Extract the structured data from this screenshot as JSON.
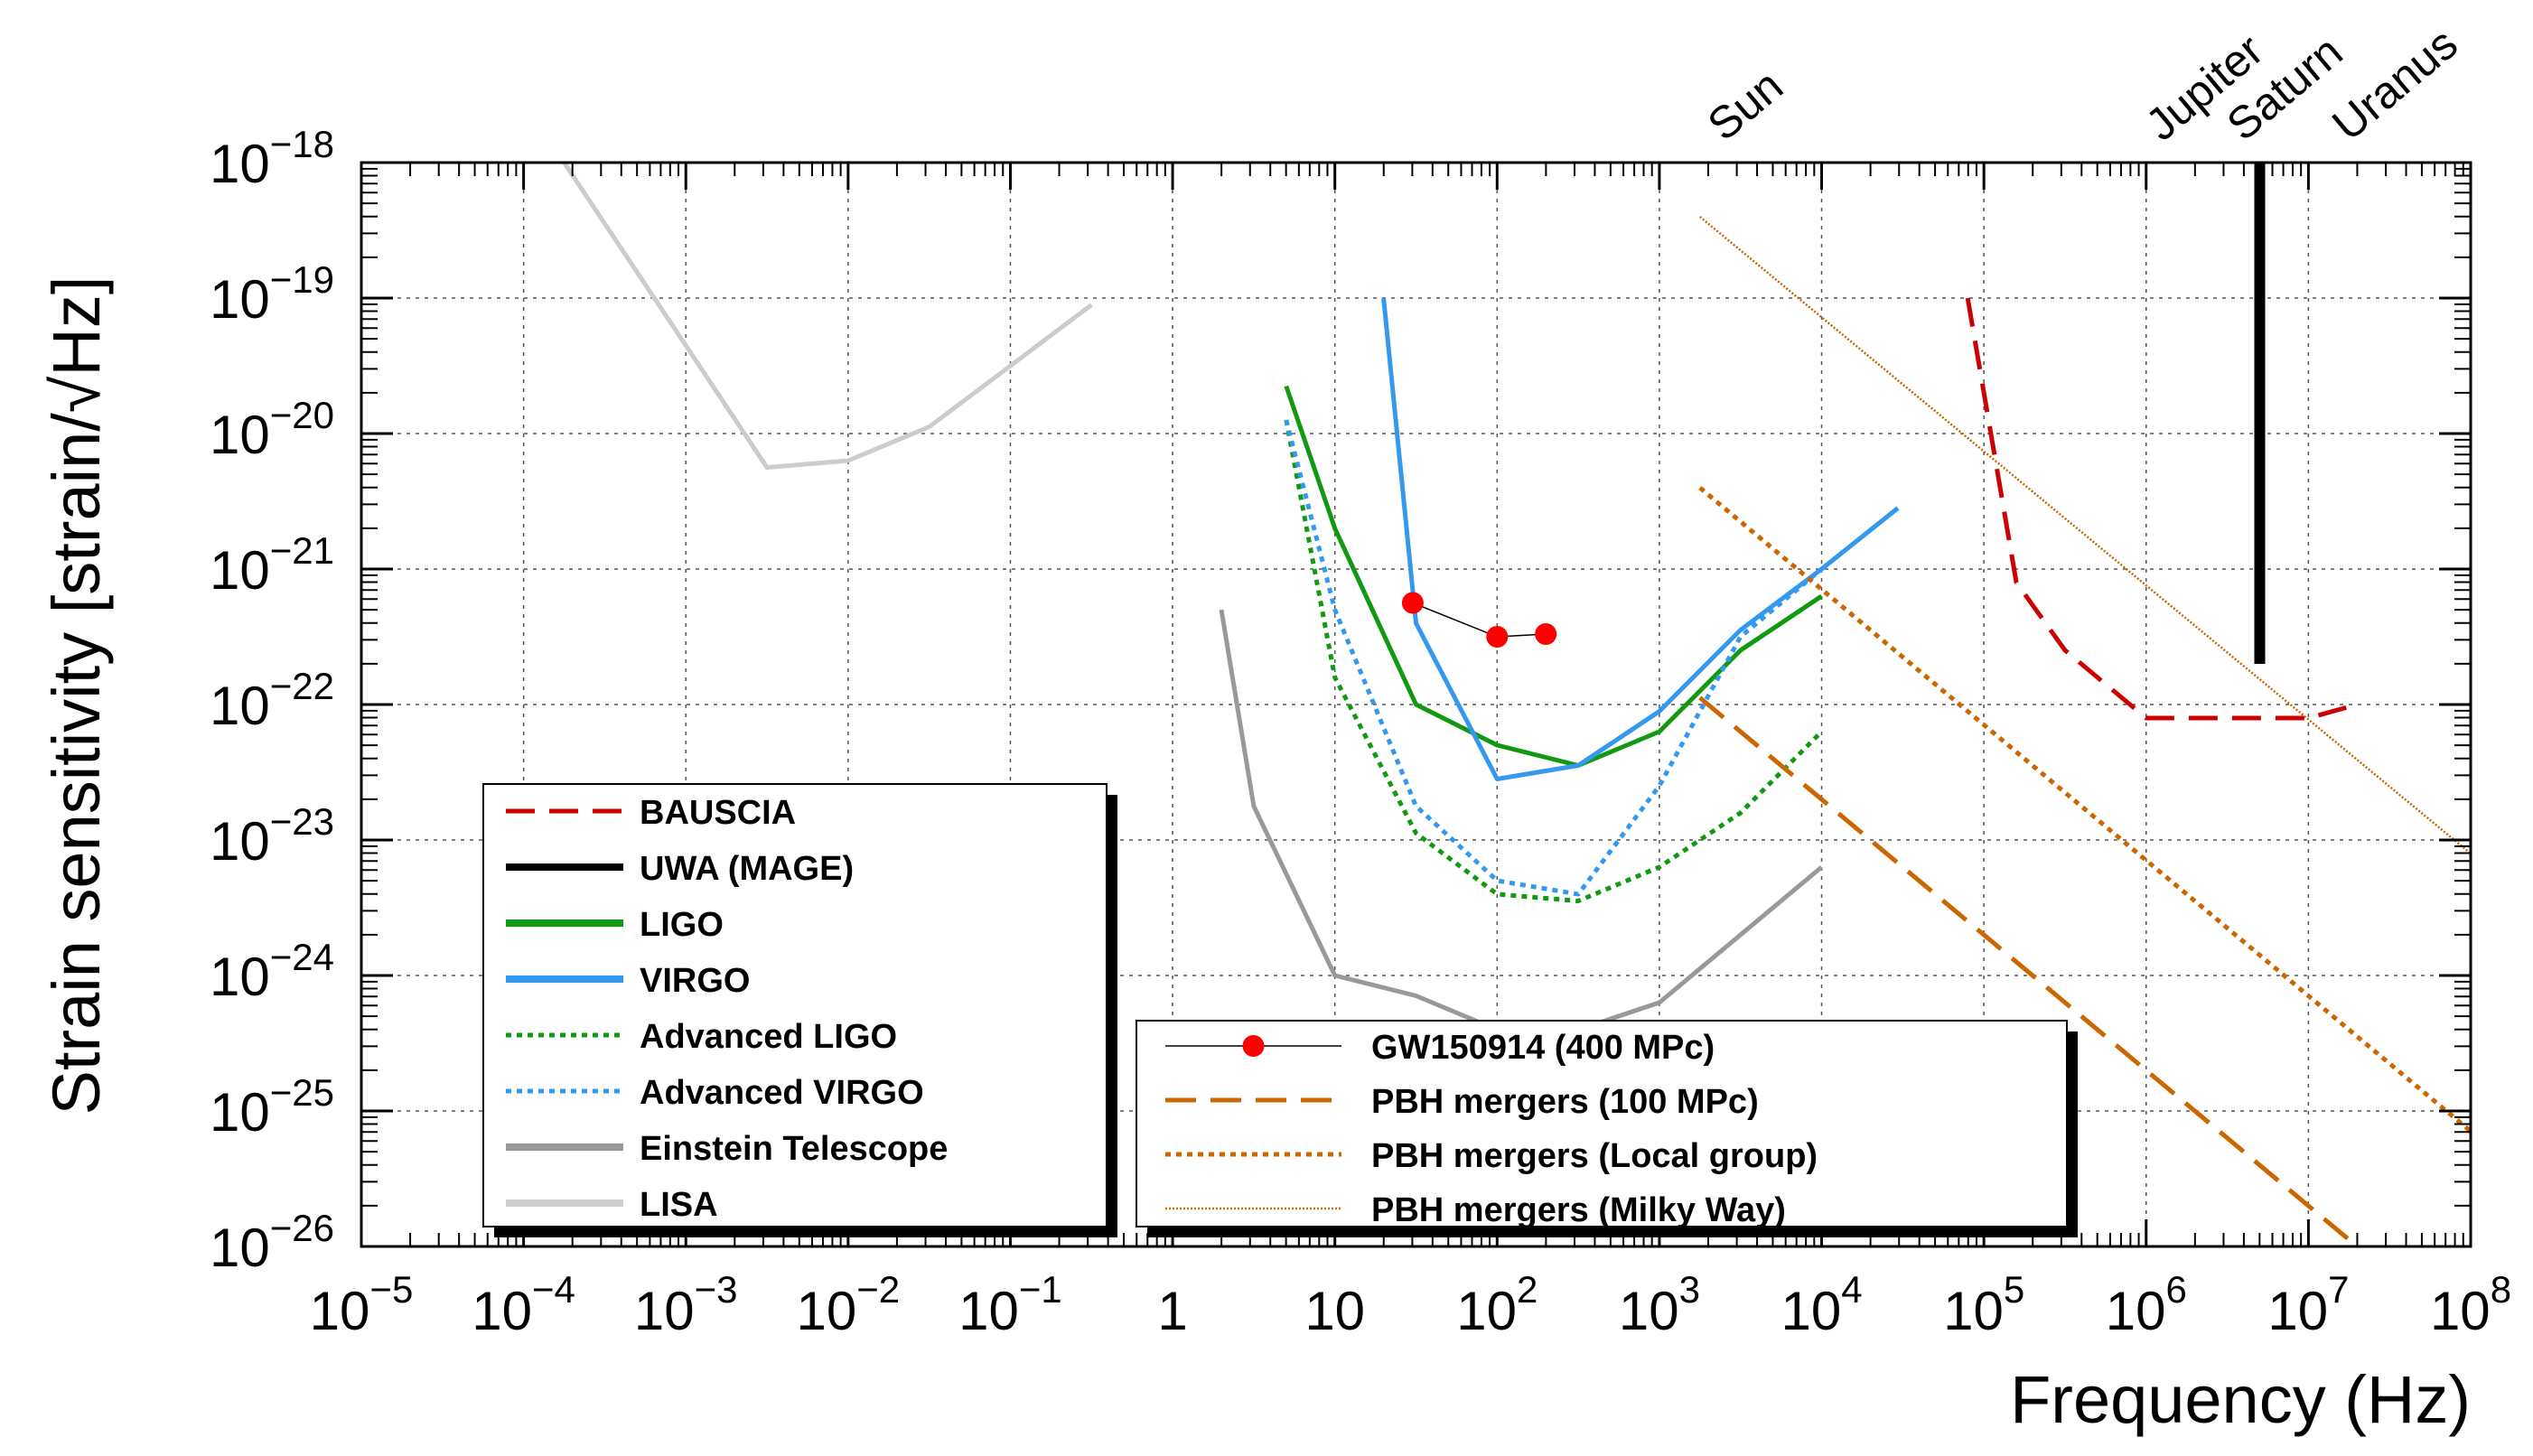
{
  "chart_data": {
    "type": "line",
    "title": "",
    "xlabel": "Frequency (Hz)",
    "ylabel_prefix": "Strain sensitivity [strain/",
    "ylabel_root": "Hz",
    "ylabel_suffix": "]",
    "x_scale": "log",
    "y_scale": "log",
    "xlim_exp": [
      -5,
      8
    ],
    "ylim_exp": [
      -26,
      -18
    ],
    "grid": true,
    "x_ticks": [
      {
        "base": "10",
        "exp": "−5",
        "val": -5
      },
      {
        "base": "10",
        "exp": "−4",
        "val": -4
      },
      {
        "base": "10",
        "exp": "−3",
        "val": -3
      },
      {
        "base": "10",
        "exp": "−2",
        "val": -2
      },
      {
        "base": "10",
        "exp": "−1",
        "val": -1
      },
      {
        "base": "1",
        "exp": "",
        "val": 0
      },
      {
        "base": "10",
        "exp": "",
        "val": 1
      },
      {
        "base": "10",
        "exp": "2",
        "val": 2
      },
      {
        "base": "10",
        "exp": "3",
        "val": 3
      },
      {
        "base": "10",
        "exp": "4",
        "val": 4
      },
      {
        "base": "10",
        "exp": "5",
        "val": 5
      },
      {
        "base": "10",
        "exp": "6",
        "val": 6
      },
      {
        "base": "10",
        "exp": "7",
        "val": 7
      },
      {
        "base": "10",
        "exp": "8",
        "val": 8
      }
    ],
    "y_ticks": [
      {
        "base": "10",
        "exp": "−18",
        "val": -18
      },
      {
        "base": "10",
        "exp": "−19",
        "val": -19
      },
      {
        "base": "10",
        "exp": "−20",
        "val": -20
      },
      {
        "base": "10",
        "exp": "−21",
        "val": -21
      },
      {
        "base": "10",
        "exp": "−22",
        "val": -22
      },
      {
        "base": "10",
        "exp": "−23",
        "val": -23
      },
      {
        "base": "10",
        "exp": "−24",
        "val": -24
      },
      {
        "base": "10",
        "exp": "−25",
        "val": -25
      },
      {
        "base": "10",
        "exp": "−26",
        "val": -26
      }
    ],
    "annotations": [
      {
        "text": "Sun",
        "logx": 3.4
      },
      {
        "text": "Jupiter",
        "logx": 6.1
      },
      {
        "text": "Saturn",
        "logx": 6.6
      },
      {
        "text": "Uranus",
        "logx": 7.25
      }
    ],
    "series": [
      {
        "name": "BAUSCIA",
        "color": "#cc0000",
        "dash": "dashed",
        "legend": 1,
        "points": [
          [
            4.9,
            -19.0
          ],
          [
            5.2,
            -21.1
          ],
          [
            5.5,
            -21.6
          ],
          [
            6.0,
            -22.1
          ],
          [
            7.0,
            -22.1
          ],
          [
            7.3,
            -22.0
          ]
        ]
      },
      {
        "name": "UWA (MAGE)",
        "color": "#000000",
        "dash": "solid",
        "legend": 1,
        "points": [
          [
            6.7,
            -18.0
          ],
          [
            6.7,
            -21.7
          ]
        ]
      },
      {
        "name": "LIGO",
        "color": "#119911",
        "dash": "solid",
        "legend": 1,
        "points": [
          [
            0.7,
            -19.65
          ],
          [
            1.0,
            -20.7
          ],
          [
            1.5,
            -22.0
          ],
          [
            2.0,
            -22.3
          ],
          [
            2.5,
            -22.45
          ],
          [
            3.0,
            -22.2
          ],
          [
            3.5,
            -21.6
          ],
          [
            4.0,
            -21.2
          ]
        ]
      },
      {
        "name": "VIRGO",
        "color": "#3399ee",
        "dash": "solid",
        "legend": 1,
        "points": [
          [
            1.3,
            -19.0
          ],
          [
            1.5,
            -21.4
          ],
          [
            2.0,
            -22.55
          ],
          [
            2.5,
            -22.45
          ],
          [
            3.0,
            -22.05
          ],
          [
            3.5,
            -21.45
          ],
          [
            4.0,
            -21.0
          ],
          [
            4.47,
            -20.55
          ]
        ]
      },
      {
        "name": "Advanced LIGO",
        "color": "#119911",
        "dash": "dotted",
        "legend": 1,
        "points": [
          [
            0.7,
            -19.9
          ],
          [
            1.0,
            -21.8
          ],
          [
            1.5,
            -22.95
          ],
          [
            2.0,
            -23.4
          ],
          [
            2.5,
            -23.45
          ],
          [
            3.0,
            -23.2
          ],
          [
            3.5,
            -22.8
          ],
          [
            4.0,
            -22.2
          ]
        ]
      },
      {
        "name": "Advanced VIRGO",
        "color": "#3399ee",
        "dash": "dotted",
        "legend": 1,
        "points": [
          [
            0.7,
            -19.9
          ],
          [
            1.0,
            -21.3
          ],
          [
            1.5,
            -22.75
          ],
          [
            2.0,
            -23.3
          ],
          [
            2.5,
            -23.4
          ],
          [
            3.0,
            -22.6
          ],
          [
            3.5,
            -21.5
          ],
          [
            4.0,
            -21.0
          ]
        ]
      },
      {
        "name": "Einstein Telescope",
        "color": "#999999",
        "dash": "solid",
        "legend": 1,
        "points": [
          [
            0.3,
            -21.3
          ],
          [
            0.5,
            -22.75
          ],
          [
            1.0,
            -24.0
          ],
          [
            1.5,
            -24.15
          ],
          [
            2.0,
            -24.4
          ],
          [
            2.5,
            -24.4
          ],
          [
            3.0,
            -24.2
          ],
          [
            3.5,
            -23.7
          ],
          [
            4.0,
            -23.2
          ]
        ]
      },
      {
        "name": "LISA",
        "color": "#cccccc",
        "dash": "solid",
        "legend": 1,
        "points": [
          [
            -3.75,
            -18.0
          ],
          [
            -2.5,
            -20.25
          ],
          [
            -2.0,
            -20.2
          ],
          [
            -1.5,
            -19.95
          ],
          [
            -0.5,
            -19.05
          ]
        ]
      },
      {
        "name": "GW150914 (400 MPc)",
        "color": "#000000",
        "dash": "solid",
        "legend": 2,
        "markers": true,
        "points": [
          [
            1.48,
            -21.25
          ],
          [
            2.0,
            -21.5
          ],
          [
            2.3,
            -21.48
          ]
        ]
      },
      {
        "name": "PBH mergers (100 MPc)",
        "color": "#cc6600",
        "dash": "longdash",
        "legend": 2,
        "points": [
          [
            3.25,
            -21.95
          ],
          [
            7.3,
            -26.0
          ]
        ]
      },
      {
        "name": "PBH mergers (Local group)",
        "color": "#cc6600",
        "dash": "dotted",
        "legend": 2,
        "points": [
          [
            3.25,
            -20.4
          ],
          [
            8.0,
            -25.15
          ]
        ]
      },
      {
        "name": "PBH mergers (Milky Way)",
        "color": "#cc6600",
        "dash": "finedotted",
        "legend": 2,
        "points": [
          [
            3.25,
            -18.4
          ],
          [
            8.0,
            -23.1
          ]
        ]
      }
    ]
  }
}
